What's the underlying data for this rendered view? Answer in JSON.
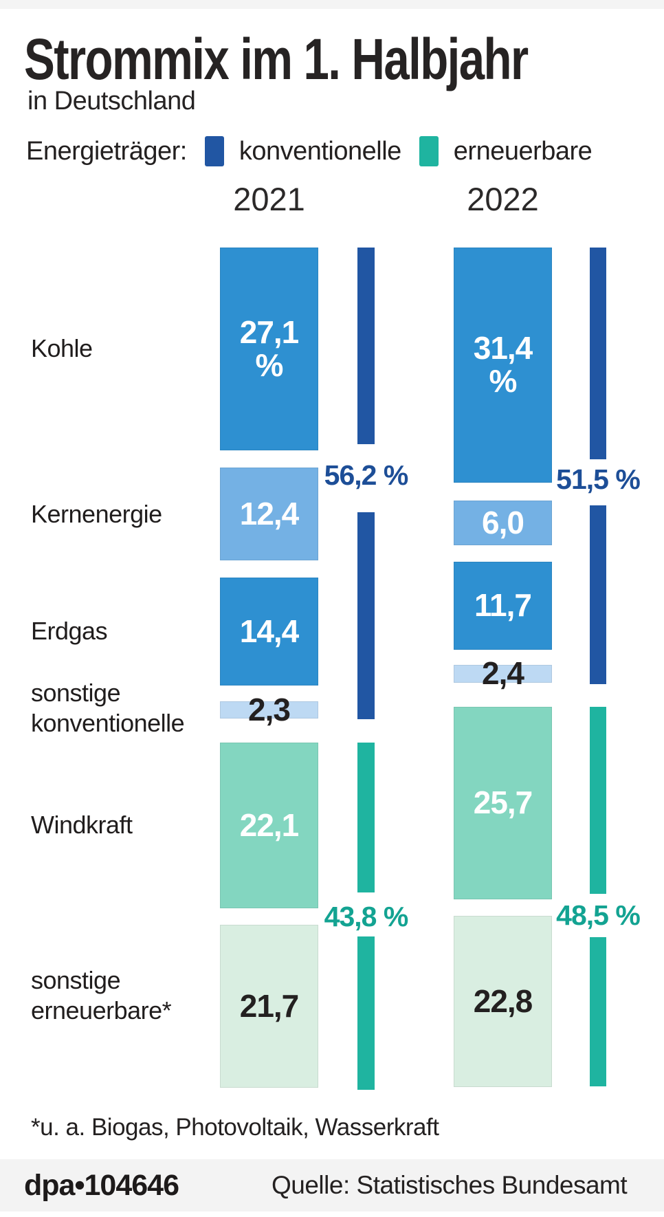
{
  "header": {
    "title": "Strommix im 1. Halbjahr",
    "subtitle": "in Deutschland"
  },
  "legend": {
    "label": "Energieträger:",
    "items": [
      {
        "id": "konventionelle",
        "label": "konventionelle",
        "color_key": "navy"
      },
      {
        "id": "erneuerbare",
        "label": "erneuerbare",
        "color_key": "teal"
      }
    ]
  },
  "colors": {
    "blue_bright": "#2e90d1",
    "blue_light": "#74b1e4",
    "blue_pale": "#bdd9f3",
    "navy": "#2156a3",
    "navy_text": "#1d4e97",
    "teal": "#1fb4a0",
    "teal_text": "#13a392",
    "mint": "#83d6c0",
    "mint_pale": "#d9eee1",
    "text_dark": "#232020",
    "footer_bg": "#f3f3f3",
    "top_strip": "#f4f4f4"
  },
  "rows": [
    {
      "id": "kohle",
      "label_lines": [
        "Kohle"
      ],
      "group": "konventionelle",
      "fill": "blue_bright",
      "value_color": "light"
    },
    {
      "id": "kernenergie",
      "label_lines": [
        "Kernenergie"
      ],
      "group": "konventionelle",
      "fill": "blue_light",
      "value_color": "light"
    },
    {
      "id": "erdgas",
      "label_lines": [
        "Erdgas"
      ],
      "group": "konventionelle",
      "fill": "blue_bright",
      "value_color": "light"
    },
    {
      "id": "sonstige-konventionelle",
      "label_lines": [
        "sonstige",
        "konventionelle"
      ],
      "group": "konventionelle",
      "fill": "blue_pale",
      "value_color": "dark"
    },
    {
      "id": "windkraft",
      "label_lines": [
        "Windkraft"
      ],
      "group": "erneuerbare",
      "fill": "mint",
      "value_color": "light"
    },
    {
      "id": "sonstige-erneuerbare",
      "label_lines": [
        "sonstige",
        "erneuerbare*"
      ],
      "group": "erneuerbare",
      "fill": "mint_pale",
      "value_color": "dark"
    }
  ],
  "chart_data": {
    "type": "bar",
    "title": "Strommix im 1. Halbjahr",
    "subtitle": "in Deutschland",
    "unit": "%",
    "categories": [
      "Kohle",
      "Kernenergie",
      "Erdgas",
      "sonstige konventionelle",
      "Windkraft",
      "sonstige erneuerbare*"
    ],
    "groups": [
      "konventionelle",
      "erneuerbare"
    ],
    "series": [
      {
        "name": "2021",
        "values": [
          27.1,
          12.4,
          14.4,
          2.3,
          22.1,
          21.7
        ],
        "bar_labels": [
          [
            "27,1",
            "%"
          ],
          [
            "12,4"
          ],
          [
            "14,4"
          ],
          [
            "2,3"
          ],
          [
            "22,1"
          ],
          [
            "21,7"
          ]
        ],
        "totals": [
          {
            "group": "konventionelle",
            "value": 56.2,
            "label": "56,2 %"
          },
          {
            "group": "erneuerbare",
            "value": 43.8,
            "label": "43,8 %"
          }
        ]
      },
      {
        "name": "2022",
        "values": [
          31.4,
          6.0,
          11.7,
          2.4,
          25.7,
          22.8
        ],
        "bar_labels": [
          [
            "31,4",
            "%"
          ],
          [
            "6,0"
          ],
          [
            "11,7"
          ],
          [
            "2,4"
          ],
          [
            "25,7"
          ],
          [
            "22,8"
          ]
        ],
        "totals": [
          {
            "group": "konventionelle",
            "value": 51.5,
            "label": "51,5 %"
          },
          {
            "group": "erneuerbare",
            "value": 48.5,
            "label": "48,5 %"
          }
        ]
      }
    ]
  },
  "footnote": "*u. a. Biogas, Photovoltaik, Wasserkraft",
  "footer": {
    "brand": "dpa",
    "bullet": "•",
    "graphic_id": "104646",
    "source": "Quelle: Statistisches Bundesamt"
  }
}
